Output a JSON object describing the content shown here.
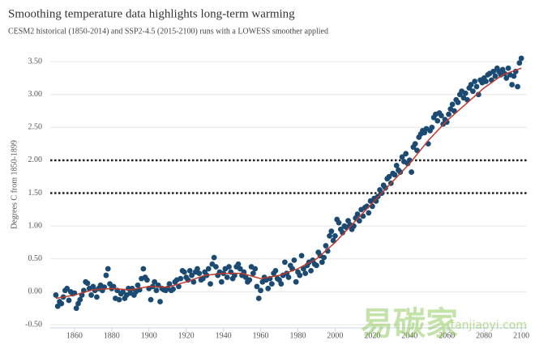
{
  "chart_data": {
    "type": "scatter",
    "title": "Smoothing temperature data highlights long-term warming",
    "subtitle": "CESM2 historical (1850-2014) and SSP2-4.5 (2015-2100) runs with a LOWESS smoother applied",
    "y_label": "Degrees C from 1850-1899",
    "xlim": [
      1847,
      2103
    ],
    "ylim": [
      -0.5,
      3.6
    ],
    "xticks": [
      1860,
      1880,
      1900,
      1920,
      1940,
      1960,
      1980,
      2000,
      2020,
      2040,
      2060,
      2080,
      2100
    ],
    "yticks": [
      {
        "value": -0.5,
        "label": "-0.50"
      },
      {
        "value": 0,
        "label": "0.00"
      },
      {
        "value": 0.5,
        "label": "0.50"
      },
      {
        "value": 1,
        "label": "1.00"
      },
      {
        "value": 1.5,
        "label": "1.50"
      },
      {
        "value": 2,
        "label": "2.00"
      },
      {
        "value": 2.5,
        "label": "2.50"
      },
      {
        "value": 3,
        "label": "3.00"
      },
      {
        "value": 3.5,
        "label": "3.50"
      }
    ],
    "grid": true,
    "reference_lines": [
      2.0,
      1.5
    ],
    "color": "#1b4a72",
    "x": [
      1850,
      1851,
      1852,
      1853,
      1854,
      1855,
      1856,
      1857,
      1858,
      1859,
      1860,
      1861,
      1862,
      1863,
      1864,
      1865,
      1866,
      1867,
      1868,
      1869,
      1870,
      1871,
      1872,
      1873,
      1874,
      1875,
      1876,
      1877,
      1878,
      1879,
      1880,
      1881,
      1882,
      1883,
      1884,
      1885,
      1886,
      1887,
      1888,
      1889,
      1890,
      1891,
      1892,
      1893,
      1894,
      1895,
      1896,
      1897,
      1898,
      1899,
      1900,
      1901,
      1902,
      1903,
      1904,
      1905,
      1906,
      1907,
      1908,
      1909,
      1910,
      1911,
      1912,
      1913,
      1914,
      1915,
      1916,
      1917,
      1918,
      1919,
      1920,
      1921,
      1922,
      1923,
      1924,
      1925,
      1926,
      1927,
      1928,
      1929,
      1930,
      1931,
      1932,
      1933,
      1934,
      1935,
      1936,
      1937,
      1938,
      1939,
      1940,
      1941,
      1942,
      1943,
      1944,
      1945,
      1946,
      1947,
      1948,
      1949,
      1950,
      1951,
      1952,
      1953,
      1954,
      1955,
      1956,
      1957,
      1958,
      1959,
      1960,
      1961,
      1962,
      1963,
      1964,
      1965,
      1966,
      1967,
      1968,
      1969,
      1970,
      1971,
      1972,
      1973,
      1974,
      1975,
      1976,
      1977,
      1978,
      1979,
      1980,
      1981,
      1982,
      1983,
      1984,
      1985,
      1986,
      1987,
      1988,
      1989,
      1990,
      1991,
      1992,
      1993,
      1994,
      1995,
      1996,
      1997,
      1998,
      1999,
      2000,
      2001,
      2002,
      2003,
      2004,
      2005,
      2006,
      2007,
      2008,
      2009,
      2010,
      2011,
      2012,
      2013,
      2014,
      2015,
      2016,
      2017,
      2018,
      2019,
      2020,
      2021,
      2022,
      2023,
      2024,
      2025,
      2026,
      2027,
      2028,
      2029,
      2030,
      2031,
      2032,
      2033,
      2034,
      2035,
      2036,
      2037,
      2038,
      2039,
      2040,
      2041,
      2042,
      2043,
      2044,
      2045,
      2046,
      2047,
      2048,
      2049,
      2050,
      2051,
      2052,
      2053,
      2054,
      2055,
      2056,
      2057,
      2058,
      2059,
      2060,
      2061,
      2062,
      2063,
      2064,
      2065,
      2066,
      2067,
      2068,
      2069,
      2070,
      2071,
      2072,
      2073,
      2074,
      2075,
      2076,
      2077,
      2078,
      2079,
      2080,
      2081,
      2082,
      2083,
      2084,
      2085,
      2086,
      2087,
      2088,
      2089,
      2090,
      2091,
      2092,
      2093,
      2094,
      2095,
      2096,
      2097,
      2098,
      2099,
      2100
    ],
    "values": [
      -0.05,
      -0.22,
      -0.15,
      -0.18,
      -0.08,
      0.02,
      0.05,
      -0.13,
      0.0,
      -0.03,
      -0.02,
      -0.25,
      -0.18,
      -0.12,
      -0.05,
      0.02,
      0.15,
      0.13,
      0.05,
      -0.05,
      0.08,
      0.02,
      -0.08,
      0.05,
      0.1,
      0.02,
      0.07,
      0.25,
      0.35,
      0.12,
      0.05,
      0.08,
      -0.1,
      0.02,
      -0.12,
      -0.03,
      0.0,
      -0.1,
      -0.05,
      0.05,
      -0.02,
      0.05,
      -0.05,
      0.0,
      0.1,
      0.03,
      0.2,
      0.35,
      0.22,
      0.18,
      0.05,
      -0.12,
      0.08,
      0.15,
      0.02,
      0.1,
      -0.15,
      0.05,
      0.03,
      0.02,
      0.05,
      0.12,
      0.02,
      0.04,
      0.15,
      0.18,
      0.08,
      0.2,
      0.32,
      0.3,
      0.22,
      0.18,
      0.32,
      0.25,
      0.15,
      0.3,
      0.35,
      0.28,
      0.18,
      0.2,
      0.3,
      0.25,
      0.35,
      0.12,
      0.42,
      0.52,
      0.38,
      0.25,
      0.3,
      0.15,
      0.28,
      0.35,
      0.22,
      0.38,
      0.3,
      0.2,
      0.25,
      0.38,
      0.42,
      0.35,
      0.25,
      0.3,
      0.22,
      0.15,
      0.18,
      0.38,
      0.28,
      0.35,
      0.08,
      -0.1,
      0.02,
      0.15,
      0.22,
      0.18,
      0.05,
      0.2,
      0.12,
      0.28,
      0.32,
      0.2,
      0.18,
      0.12,
      0.25,
      0.45,
      0.28,
      0.22,
      0.4,
      0.35,
      0.48,
      0.15,
      0.3,
      0.25,
      0.55,
      0.35,
      0.28,
      0.4,
      0.45,
      0.32,
      0.48,
      0.42,
      0.4,
      0.6,
      0.55,
      0.45,
      0.52,
      0.7,
      0.62,
      0.85,
      0.92,
      0.78,
      0.85,
      1.1,
      1.05,
      0.95,
      0.9,
      1.0,
      0.98,
      1.08,
      1.02,
      0.95,
      1.0,
      1.12,
      1.18,
      1.08,
      1.25,
      1.15,
      1.28,
      1.3,
      1.2,
      1.38,
      1.3,
      1.42,
      1.38,
      1.45,
      1.55,
      1.5,
      1.62,
      1.58,
      1.72,
      1.75,
      1.65,
      1.8,
      1.78,
      1.92,
      1.85,
      1.82,
      2.05,
      1.98,
      2.1,
      1.95,
      2.0,
      1.82,
      2.2,
      2.25,
      2.15,
      2.35,
      2.4,
      2.45,
      2.42,
      2.48,
      2.25,
      2.45,
      2.5,
      2.65,
      2.7,
      2.6,
      2.72,
      2.68,
      2.55,
      2.62,
      2.58,
      2.7,
      2.78,
      2.85,
      2.75,
      2.92,
      2.88,
      3.0,
      3.05,
      2.95,
      3.02,
      2.92,
      3.1,
      3.15,
      3.05,
      3.2,
      3.12,
      3.0,
      3.22,
      3.18,
      3.25,
      3.2,
      3.3,
      3.32,
      3.22,
      3.35,
      3.28,
      3.4,
      3.35,
      3.3,
      3.38,
      3.32,
      3.25,
      3.4,
      3.3,
      3.15,
      3.28,
      3.35,
      3.12,
      3.48,
      3.55
    ],
    "smoother": {
      "color": "#c0392b",
      "x": [
        1850,
        1860,
        1870,
        1880,
        1890,
        1900,
        1910,
        1920,
        1930,
        1940,
        1950,
        1960,
        1970,
        1980,
        1990,
        2000,
        2010,
        2020,
        2030,
        2040,
        2050,
        2060,
        2070,
        2080,
        2090,
        2100
      ],
      "values": [
        -0.1,
        -0.05,
        0.03,
        0.05,
        0.03,
        0.08,
        0.07,
        0.15,
        0.25,
        0.28,
        0.28,
        0.2,
        0.25,
        0.35,
        0.5,
        0.75,
        1.05,
        1.35,
        1.65,
        1.95,
        2.3,
        2.6,
        2.85,
        3.1,
        3.3,
        3.4
      ]
    },
    "watermark": [
      "易碳家",
      "tanjiaoyi.com"
    ]
  }
}
